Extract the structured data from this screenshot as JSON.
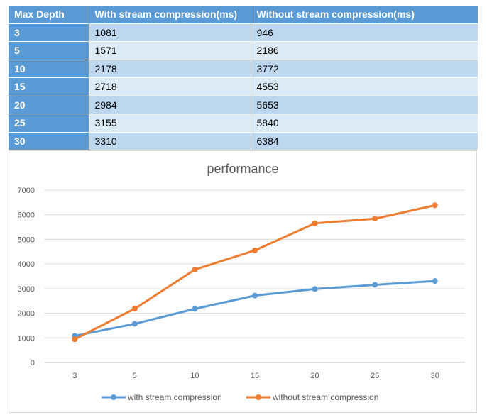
{
  "table": {
    "headers": [
      "Max Depth",
      "With stream compression(ms)",
      "Without stream compression(ms)"
    ],
    "rows": [
      [
        "3",
        "1081",
        "946"
      ],
      [
        "5",
        "1571",
        "2186"
      ],
      [
        "10",
        "2178",
        "3772"
      ],
      [
        "15",
        "2718",
        "4553"
      ],
      [
        "20",
        "2984",
        "5653"
      ],
      [
        "25",
        "3155",
        "5840"
      ],
      [
        "30",
        "3310",
        "6384"
      ]
    ]
  },
  "chart_data": {
    "type": "line",
    "title": "performance",
    "xlabel": "",
    "ylabel": "",
    "categories": [
      "3",
      "5",
      "10",
      "15",
      "20",
      "25",
      "30"
    ],
    "ylim": [
      0,
      7000
    ],
    "yticks": [
      0,
      1000,
      2000,
      3000,
      4000,
      5000,
      6000,
      7000
    ],
    "grid": true,
    "legend_position": "bottom",
    "series": [
      {
        "name": "with stream compression",
        "color": "#5b9bd5",
        "values": [
          1081,
          1571,
          2178,
          2718,
          2984,
          3155,
          3310
        ]
      },
      {
        "name": "without stream compression",
        "color": "#ed7d31",
        "values": [
          946,
          2186,
          3772,
          4553,
          5653,
          5840,
          6384
        ]
      }
    ]
  },
  "colors": {
    "header_bg": "#5b9bd5",
    "row_odd": "#bdd7ee",
    "row_even": "#ddebf7"
  }
}
